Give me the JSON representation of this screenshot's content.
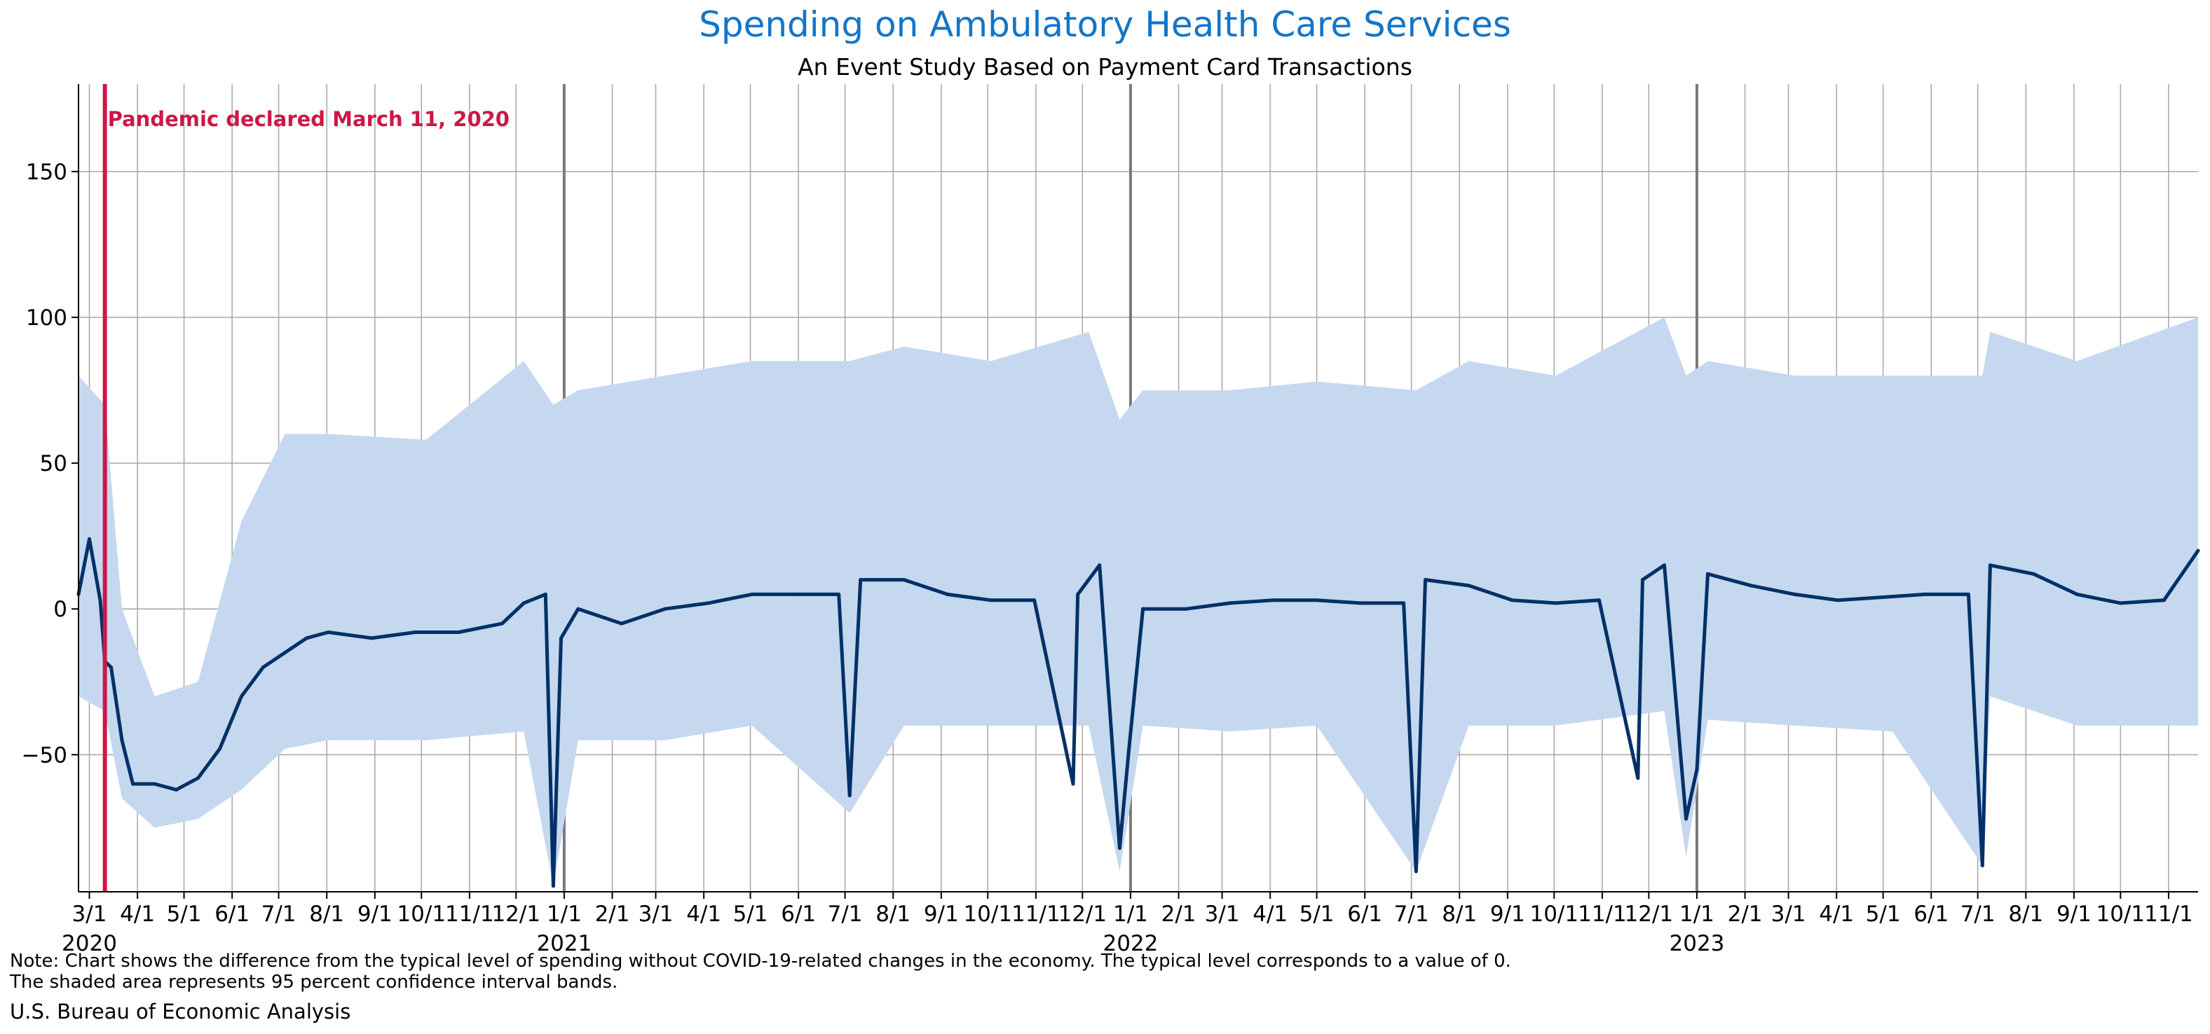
{
  "header": {
    "title": "Spending on Ambulatory Health Care Services",
    "subtitle": "An Event Study Based on Payment Card Transactions"
  },
  "footer": {
    "note_line1": "Note: Chart shows the difference from the typical level of spending without COVID-19-related changes in the economy. The typical level corresponds to a value of 0.",
    "note_line2": "The shaded area represents 95 percent confidence interval bands.",
    "source": "U.S. Bureau of Economic Analysis"
  },
  "colors": {
    "title": "#1375c8",
    "line": "#003067",
    "band": "#c5d8ef",
    "event": "#cc1847",
    "grid": "#a6a6a6",
    "year_line": "#7a7a7a"
  },
  "chart_data": {
    "type": "line",
    "title": "Spending on Ambulatory Health Care Services",
    "subtitle": "An Event Study Based on Payment Card Transactions",
    "xlabel": "",
    "ylabel": "",
    "x_range": [
      "2020-02-23",
      "2023-11-20"
    ],
    "ylim": [
      -97,
      180
    ],
    "y_ticks": [
      -50,
      0,
      50,
      100,
      150
    ],
    "y_tick_labels": [
      "−50",
      "0",
      "50",
      "100",
      "150"
    ],
    "grid": true,
    "x_ticks": [
      {
        "date": "2020-03-01",
        "label": "3/1",
        "year": "2020"
      },
      {
        "date": "2020-04-01",
        "label": "4/1"
      },
      {
        "date": "2020-05-01",
        "label": "5/1"
      },
      {
        "date": "2020-06-01",
        "label": "6/1"
      },
      {
        "date": "2020-07-01",
        "label": "7/1"
      },
      {
        "date": "2020-08-01",
        "label": "8/1"
      },
      {
        "date": "2020-09-01",
        "label": "9/1"
      },
      {
        "date": "2020-10-01",
        "label": "10/1"
      },
      {
        "date": "2020-11-01",
        "label": "11/1"
      },
      {
        "date": "2020-12-01",
        "label": "12/1"
      },
      {
        "date": "2021-01-01",
        "label": "1/1",
        "year": "2021"
      },
      {
        "date": "2021-02-01",
        "label": "2/1"
      },
      {
        "date": "2021-03-01",
        "label": "3/1"
      },
      {
        "date": "2021-04-01",
        "label": "4/1"
      },
      {
        "date": "2021-05-01",
        "label": "5/1"
      },
      {
        "date": "2021-06-01",
        "label": "6/1"
      },
      {
        "date": "2021-07-01",
        "label": "7/1"
      },
      {
        "date": "2021-08-01",
        "label": "8/1"
      },
      {
        "date": "2021-09-01",
        "label": "9/1"
      },
      {
        "date": "2021-10-01",
        "label": "10/1"
      },
      {
        "date": "2021-11-01",
        "label": "11/1"
      },
      {
        "date": "2021-12-01",
        "label": "12/1"
      },
      {
        "date": "2022-01-01",
        "label": "1/1",
        "year": "2022"
      },
      {
        "date": "2022-02-01",
        "label": "2/1"
      },
      {
        "date": "2022-03-01",
        "label": "3/1"
      },
      {
        "date": "2022-04-01",
        "label": "4/1"
      },
      {
        "date": "2022-05-01",
        "label": "5/1"
      },
      {
        "date": "2022-06-01",
        "label": "6/1"
      },
      {
        "date": "2022-07-01",
        "label": "7/1"
      },
      {
        "date": "2022-08-01",
        "label": "8/1"
      },
      {
        "date": "2022-09-01",
        "label": "9/1"
      },
      {
        "date": "2022-10-01",
        "label": "10/1"
      },
      {
        "date": "2022-11-01",
        "label": "11/1"
      },
      {
        "date": "2022-12-01",
        "label": "12/1"
      },
      {
        "date": "2023-01-01",
        "label": "1/1",
        "year": "2023"
      },
      {
        "date": "2023-02-01",
        "label": "2/1"
      },
      {
        "date": "2023-03-01",
        "label": "3/1"
      },
      {
        "date": "2023-04-01",
        "label": "4/1"
      },
      {
        "date": "2023-05-01",
        "label": "5/1"
      },
      {
        "date": "2023-06-01",
        "label": "6/1"
      },
      {
        "date": "2023-07-01",
        "label": "7/1"
      },
      {
        "date": "2023-08-01",
        "label": "8/1"
      },
      {
        "date": "2023-09-01",
        "label": "9/1"
      },
      {
        "date": "2023-10-01",
        "label": "10/1"
      },
      {
        "date": "2023-11-01",
        "label": "11/1"
      }
    ],
    "year_boundaries": [
      "2021-01-01",
      "2022-01-01",
      "2023-01-01"
    ],
    "event": {
      "date": "2020-03-11",
      "label": "Pandemic declared March 11, 2020"
    },
    "series": [
      {
        "type": "line",
        "points": [
          [
            "2020-02-23",
            5
          ],
          [
            "2020-03-01",
            24
          ],
          [
            "2020-03-08",
            3
          ],
          [
            "2020-03-11",
            -18
          ],
          [
            "2020-03-15",
            -20
          ],
          [
            "2020-03-22",
            -45
          ],
          [
            "2020-03-29",
            -60
          ],
          [
            "2020-04-12",
            -60
          ],
          [
            "2020-04-26",
            -62
          ],
          [
            "2020-05-10",
            -58
          ],
          [
            "2020-05-24",
            -48
          ],
          [
            "2020-06-07",
            -30
          ],
          [
            "2020-06-21",
            -20
          ],
          [
            "2020-07-05",
            -15
          ],
          [
            "2020-07-19",
            -10
          ],
          [
            "2020-08-02",
            -8
          ],
          [
            "2020-08-30",
            -10
          ],
          [
            "2020-09-27",
            -8
          ],
          [
            "2020-10-25",
            -8
          ],
          [
            "2020-11-22",
            -5
          ],
          [
            "2020-12-06",
            2
          ],
          [
            "2020-12-20",
            5
          ],
          [
            "2020-12-25",
            -95
          ],
          [
            "2020-12-30",
            -10
          ],
          [
            "2021-01-10",
            0
          ],
          [
            "2021-02-07",
            -5
          ],
          [
            "2021-03-07",
            0
          ],
          [
            "2021-04-04",
            2
          ],
          [
            "2021-05-02",
            5
          ],
          [
            "2021-05-30",
            5
          ],
          [
            "2021-06-27",
            5
          ],
          [
            "2021-07-04",
            -64
          ],
          [
            "2021-07-11",
            10
          ],
          [
            "2021-08-08",
            10
          ],
          [
            "2021-09-05",
            5
          ],
          [
            "2021-10-03",
            3
          ],
          [
            "2021-10-31",
            3
          ],
          [
            "2021-11-25",
            -60
          ],
          [
            "2021-11-28",
            5
          ],
          [
            "2021-12-12",
            15
          ],
          [
            "2021-12-25",
            -82
          ],
          [
            "2021-12-31",
            -48
          ],
          [
            "2022-01-09",
            0
          ],
          [
            "2022-02-06",
            0
          ],
          [
            "2022-03-06",
            2
          ],
          [
            "2022-04-03",
            3
          ],
          [
            "2022-05-01",
            3
          ],
          [
            "2022-05-29",
            2
          ],
          [
            "2022-06-26",
            2
          ],
          [
            "2022-07-04",
            -90
          ],
          [
            "2022-07-10",
            10
          ],
          [
            "2022-08-07",
            8
          ],
          [
            "2022-09-04",
            3
          ],
          [
            "2022-10-02",
            2
          ],
          [
            "2022-10-30",
            3
          ],
          [
            "2022-11-24",
            -58
          ],
          [
            "2022-11-27",
            10
          ],
          [
            "2022-12-11",
            15
          ],
          [
            "2022-12-25",
            -72
          ],
          [
            "2023-01-01",
            -55
          ],
          [
            "2023-01-08",
            12
          ],
          [
            "2023-02-05",
            8
          ],
          [
            "2023-03-05",
            5
          ],
          [
            "2023-04-02",
            3
          ],
          [
            "2023-04-30",
            4
          ],
          [
            "2023-05-28",
            5
          ],
          [
            "2023-06-25",
            5
          ],
          [
            "2023-07-04",
            -88
          ],
          [
            "2023-07-09",
            15
          ],
          [
            "2023-08-06",
            12
          ],
          [
            "2023-09-03",
            5
          ],
          [
            "2023-10-01",
            2
          ],
          [
            "2023-10-29",
            3
          ],
          [
            "2023-11-20",
            20
          ]
        ]
      },
      {
        "type": "band",
        "level": 0.95,
        "points": [
          [
            "2020-02-23",
            -30,
            80
          ],
          [
            "2020-03-11",
            -35,
            70
          ],
          [
            "2020-03-22",
            -65,
            0
          ],
          [
            "2020-04-12",
            -75,
            -30
          ],
          [
            "2020-05-10",
            -72,
            -25
          ],
          [
            "2020-06-07",
            -62,
            30
          ],
          [
            "2020-07-05",
            -48,
            60
          ],
          [
            "2020-08-02",
            -45,
            60
          ],
          [
            "2020-10-04",
            -45,
            58
          ],
          [
            "2020-12-06",
            -42,
            85
          ],
          [
            "2020-12-25",
            -95,
            70
          ],
          [
            "2021-01-10",
            -45,
            75
          ],
          [
            "2021-03-07",
            -45,
            80
          ],
          [
            "2021-05-02",
            -40,
            85
          ],
          [
            "2021-07-04",
            -70,
            85
          ],
          [
            "2021-08-08",
            -40,
            90
          ],
          [
            "2021-10-03",
            -40,
            85
          ],
          [
            "2021-12-05",
            -40,
            95
          ],
          [
            "2021-12-25",
            -90,
            65
          ],
          [
            "2022-01-09",
            -40,
            75
          ],
          [
            "2022-03-06",
            -42,
            75
          ],
          [
            "2022-05-01",
            -40,
            78
          ],
          [
            "2022-07-04",
            -90,
            75
          ],
          [
            "2022-08-07",
            -40,
            85
          ],
          [
            "2022-10-02",
            -40,
            80
          ],
          [
            "2022-12-11",
            -35,
            100
          ],
          [
            "2022-12-25",
            -85,
            80
          ],
          [
            "2023-01-08",
            -38,
            85
          ],
          [
            "2023-03-05",
            -40,
            80
          ],
          [
            "2023-05-07",
            -42,
            80
          ],
          [
            "2023-07-04",
            -88,
            80
          ],
          [
            "2023-07-09",
            -30,
            95
          ],
          [
            "2023-09-03",
            -40,
            85
          ],
          [
            "2023-11-20",
            -40,
            100
          ]
        ]
      }
    ]
  }
}
